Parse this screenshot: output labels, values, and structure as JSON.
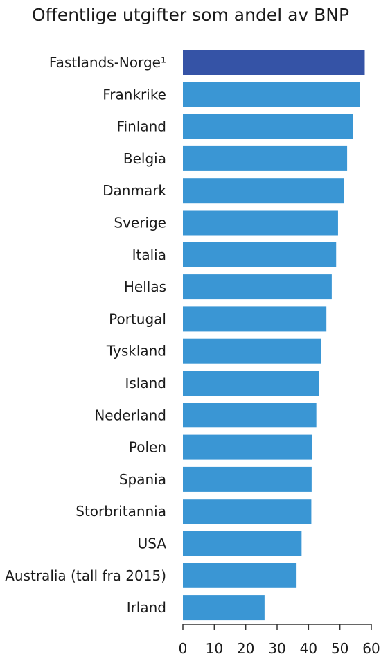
{
  "chart_data": {
    "type": "bar",
    "orientation": "horizontal",
    "title": "Offentlige utgifter som andel av BNP",
    "categories": [
      "Fastlands-Norge¹",
      "Frankrike",
      "Finland",
      "Belgia",
      "Danmark",
      "Sverige",
      "Italia",
      "Hellas",
      "Portugal",
      "Tyskland",
      "Island",
      "Nederland",
      "Polen",
      "Spania",
      "Storbritannia",
      "USA",
      "Australia (tall fra 2015)",
      "Irland"
    ],
    "values": [
      57.9,
      56.4,
      54.2,
      52.3,
      51.3,
      49.4,
      48.8,
      47.4,
      45.7,
      44.0,
      43.4,
      42.5,
      41.1,
      41.0,
      40.9,
      37.8,
      36.2,
      26.0
    ],
    "highlight_index": 0,
    "colors": {
      "bar": "#3a96d4",
      "highlight": "#3553a6",
      "axis": "#333333"
    },
    "xlim": [
      0,
      60
    ],
    "xticks": [
      0,
      10,
      20,
      30,
      40,
      50,
      60
    ],
    "grid": false,
    "legend": "none"
  }
}
